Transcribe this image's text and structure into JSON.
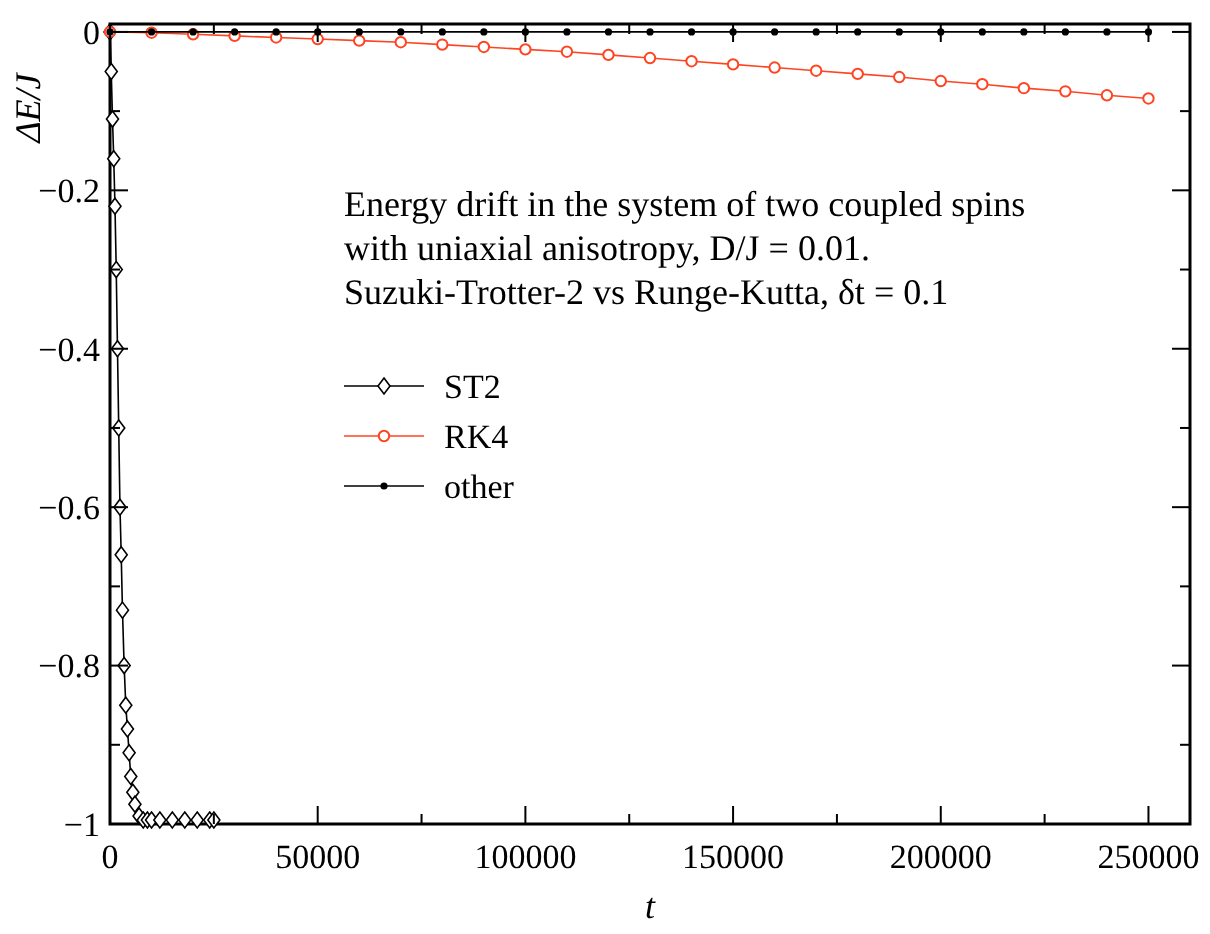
{
  "chart_data": {
    "type": "line",
    "xlabel": "t",
    "ylabel": "ΔE/J",
    "annotations": [
      "Energy drift in the system of two coupled spins",
      "with uniaxial anisotropy, D/J  = 0.01.",
      "Suzuki-Trotter-2 vs Runge-Kutta, δt  = 0.1"
    ],
    "xlim": [
      0,
      260000
    ],
    "ylim": [
      -1,
      0.01
    ],
    "xticks": [
      0,
      {
        "value": 25000,
        "label": null
      },
      50000,
      {
        "value": 75000,
        "label": null
      },
      100000,
      {
        "value": 125000,
        "label": null
      },
      150000,
      {
        "value": 175000,
        "label": null
      },
      200000,
      {
        "value": 225000,
        "label": null
      },
      250000
    ],
    "yticks": [
      {
        "value": -1,
        "label": "−1"
      },
      {
        "value": -0.9,
        "label": null
      },
      {
        "value": -0.8,
        "label": "−0.8"
      },
      {
        "value": -0.7,
        "label": null
      },
      {
        "value": -0.6,
        "label": "−0.6"
      },
      {
        "value": -0.5,
        "label": null
      },
      {
        "value": -0.4,
        "label": "−0.4"
      },
      {
        "value": -0.3,
        "label": null
      },
      {
        "value": -0.2,
        "label": "−0.2"
      },
      {
        "value": -0.1,
        "label": null
      },
      0
    ],
    "grid": false,
    "legend": "left",
    "series": [
      {
        "name": "ST2",
        "color": "#000000",
        "marker": "diamond",
        "x": [
          0,
          300,
          600,
          900,
          1200,
          1500,
          1800,
          2100,
          2400,
          2700,
          3000,
          3400,
          3800,
          4200,
          4600,
          5000,
          5500,
          6000,
          7000,
          8000,
          9000,
          10000,
          12000,
          15000,
          18000,
          21000,
          24000,
          25000
        ],
        "values": [
          0,
          -0.05,
          -0.11,
          -0.16,
          -0.22,
          -0.3,
          -0.4,
          -0.5,
          -0.6,
          -0.66,
          -0.73,
          -0.8,
          -0.85,
          -0.88,
          -0.91,
          -0.94,
          -0.96,
          -0.975,
          -0.99,
          -0.995,
          -0.995,
          -0.995,
          -0.995,
          -0.995,
          -0.995,
          -0.995,
          -0.995,
          -0.995
        ]
      },
      {
        "name": "RK4",
        "color": "#ff4422",
        "marker": "circle",
        "x": [
          0,
          10000,
          20000,
          30000,
          40000,
          50000,
          60000,
          70000,
          80000,
          90000,
          100000,
          110000,
          120000,
          130000,
          140000,
          150000,
          160000,
          170000,
          180000,
          190000,
          200000,
          210000,
          220000,
          230000,
          240000,
          250000
        ],
        "values": [
          0,
          -0.001,
          -0.003,
          -0.005,
          -0.007,
          -0.009,
          -0.011,
          -0.013,
          -0.016,
          -0.019,
          -0.022,
          -0.025,
          -0.029,
          -0.033,
          -0.037,
          -0.041,
          -0.045,
          -0.049,
          -0.053,
          -0.057,
          -0.062,
          -0.066,
          -0.071,
          -0.075,
          -0.08,
          -0.084
        ]
      },
      {
        "name": "other",
        "color": "#000000",
        "marker": "dot",
        "x": [
          0,
          10000,
          20000,
          30000,
          40000,
          50000,
          60000,
          70000,
          80000,
          90000,
          100000,
          110000,
          120000,
          130000,
          140000,
          150000,
          160000,
          170000,
          180000,
          190000,
          200000,
          210000,
          220000,
          230000,
          240000,
          250000
        ],
        "values": [
          0,
          0,
          0,
          0,
          0,
          0,
          0,
          0,
          0,
          0,
          0,
          0,
          0,
          0,
          0,
          0,
          0,
          0,
          0,
          0,
          0,
          0,
          0,
          0,
          0,
          0
        ]
      }
    ]
  }
}
